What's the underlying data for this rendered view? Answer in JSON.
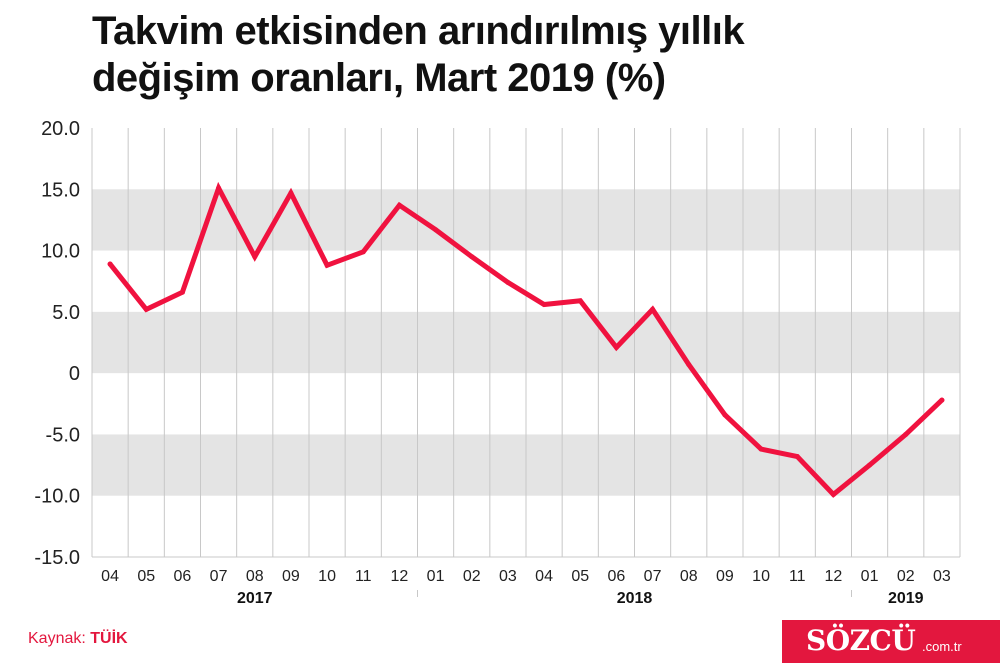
{
  "title_lines": [
    "Takvim etkisinden arındırılmış yıllık",
    "değişim oranları, Mart 2019 (%)"
  ],
  "source": {
    "label": "Kaynak: ",
    "value": "TÜİK"
  },
  "brand": {
    "name": "SÖZCÜ",
    "domain": ".com.tr"
  },
  "colors": {
    "line": "#f0123f",
    "band": "#e4e4e4",
    "grid": "#c8c8c8",
    "brand": "#e3173e"
  },
  "chart_data": {
    "type": "line",
    "title": "Takvim etkisinden arındırılmış yıllık değişim oranları, Mart 2019 (%)",
    "categories": [
      "04",
      "05",
      "06",
      "07",
      "08",
      "09",
      "10",
      "11",
      "12",
      "01",
      "02",
      "03",
      "04",
      "05",
      "06",
      "07",
      "08",
      "09",
      "10",
      "11",
      "12",
      "01",
      "02",
      "03"
    ],
    "year_groups": [
      {
        "label": "2017",
        "start": 0,
        "end": 8
      },
      {
        "label": "2018",
        "start": 9,
        "end": 20
      },
      {
        "label": "2019",
        "start": 21,
        "end": 23
      }
    ],
    "series": [
      {
        "values": [
          8.9,
          5.2,
          6.6,
          15.1,
          9.5,
          14.7,
          8.8,
          9.9,
          13.7,
          11.7,
          9.5,
          7.4,
          5.6,
          5.9,
          2.1,
          5.2,
          0.7,
          -3.4,
          -6.2,
          -6.8,
          -9.9,
          -7.5,
          -5.0,
          -2.2
        ]
      }
    ],
    "y_ticks": [
      "20.0",
      "15.0",
      "10.0",
      "5.0",
      "0",
      "-5.0",
      "-10.0",
      "-15.0"
    ],
    "ylim": [
      -15,
      20
    ],
    "grid": true,
    "shaded_bands": [
      [
        10,
        15
      ],
      [
        0,
        5
      ],
      [
        -10,
        -5
      ]
    ]
  }
}
